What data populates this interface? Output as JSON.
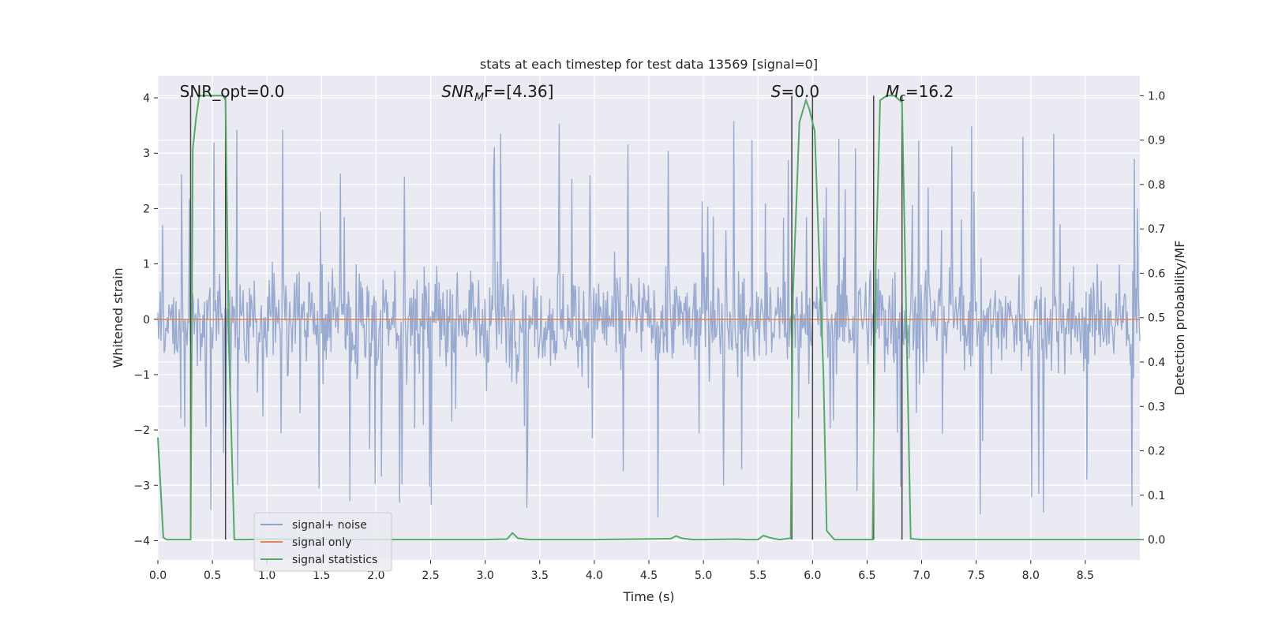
{
  "chart_data": {
    "type": "line",
    "title": "stats at each timestep for test data 13569 [signal=0]",
    "xlabel": "Time (s)",
    "ylabel_left": "Whitened strain",
    "ylabel_right": "Detection probability/MF",
    "xlim": [
      0,
      9.0
    ],
    "ylim_left": [
      -4.35,
      4.4
    ],
    "ylim_right": [
      -0.046,
      1.045
    ],
    "x_ticks": [
      "0.0",
      "0.5",
      "1.0",
      "1.5",
      "2.0",
      "2.5",
      "3.0",
      "3.5",
      "4.0",
      "4.5",
      "5.0",
      "5.5",
      "6.0",
      "6.5",
      "7.0",
      "7.5",
      "8.0",
      "8.5"
    ],
    "x_tick_values": [
      0,
      0.5,
      1,
      1.5,
      2,
      2.5,
      3,
      3.5,
      4,
      4.5,
      5,
      5.5,
      6,
      6.5,
      7,
      7.5,
      8,
      8.5
    ],
    "y_left_ticks": [
      "−4",
      "−3",
      "−2",
      "−1",
      "0",
      "1",
      "2",
      "3",
      "4"
    ],
    "y_left_tick_values": [
      -4,
      -3,
      -2,
      -1,
      0,
      1,
      2,
      3,
      4
    ],
    "y_right_ticks": [
      "0.0",
      "0.1",
      "0.2",
      "0.3",
      "0.4",
      "0.5",
      "0.6",
      "0.7",
      "0.8",
      "0.9",
      "1.0"
    ],
    "y_right_tick_values": [
      0,
      0.1,
      0.2,
      0.3,
      0.4,
      0.5,
      0.6,
      0.7,
      0.8,
      0.9,
      1.0
    ],
    "grid": true,
    "legend_position": "lower-left",
    "series": [
      {
        "name": "signal+ noise",
        "color": "#8fa3cc",
        "axis": "left",
        "kind": "noise",
        "band": [
          -1.3,
          1.5
        ],
        "spike_range": [
          -3.8,
          3.8
        ]
      },
      {
        "name": "signal only",
        "color": "#dd8452",
        "axis": "left",
        "kind": "constant",
        "value": 0
      },
      {
        "name": "signal statistics",
        "color": "#55a868",
        "axis": "right",
        "kind": "line",
        "x": [
          0.0,
          0.05,
          0.08,
          0.25,
          0.3,
          0.32,
          0.35,
          0.38,
          0.45,
          0.55,
          0.6,
          0.62,
          0.65,
          0.7,
          0.8,
          1.0,
          2.0,
          3.0,
          3.2,
          3.25,
          3.3,
          3.4,
          4.0,
          4.7,
          4.75,
          4.8,
          4.9,
          5.0,
          5.3,
          5.4,
          5.5,
          5.55,
          5.6,
          5.65,
          5.7,
          5.8,
          5.82,
          5.88,
          5.94,
          5.97,
          6.02,
          6.1,
          6.13,
          6.2,
          6.25,
          6.55,
          6.58,
          6.62,
          6.68,
          6.75,
          6.82,
          6.9,
          7.0,
          8.0,
          9.0
        ],
        "y": [
          0.23,
          0.005,
          0.0,
          0.0,
          0.0,
          0.88,
          0.95,
          1.0,
          1.0,
          1.0,
          1.0,
          0.99,
          0.45,
          0.0,
          0.0,
          0.001,
          0.0,
          0.0,
          0.001,
          0.015,
          0.003,
          0.0,
          0.0,
          0.002,
          0.008,
          0.003,
          0.0,
          0.0,
          0.001,
          0.0,
          0.0,
          0.009,
          0.005,
          0.002,
          0.0,
          0.003,
          0.55,
          0.94,
          0.99,
          0.97,
          0.92,
          0.37,
          0.02,
          0.0,
          0.0,
          0.0,
          0.62,
          0.99,
          1.0,
          1.0,
          0.985,
          0.002,
          0.0,
          0.0,
          0.0
        ]
      }
    ],
    "vertical_lines": [
      0.3,
      0.62,
      5.81,
      6.0,
      6.56,
      6.82
    ],
    "vertical_line_color": "#444444",
    "annotations": [
      {
        "text": "SNR_opt=0.0",
        "x": 0.2
      },
      {
        "main": "SNR",
        "sub": "M",
        "rest": "F=[4.36]",
        "x": 2.6
      },
      {
        "main": "S",
        "sub": "",
        "rest": "=0.0",
        "x": 5.62
      },
      {
        "main": "M",
        "sub": "c",
        "rest": "=16.2",
        "x": 6.67
      }
    ]
  }
}
